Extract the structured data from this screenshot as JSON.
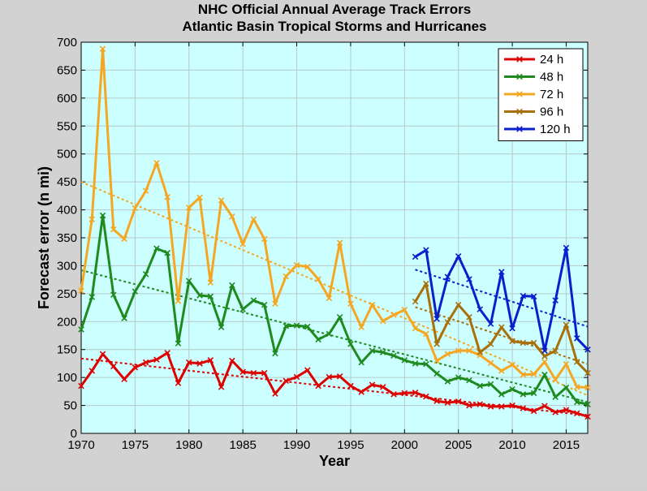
{
  "chart_data": {
    "type": "line",
    "title": "NHC Official Annual Average Track Errors",
    "subtitle": "Atlantic Basin Tropical Storms and Hurricanes",
    "xlabel": "Year",
    "ylabel": "Forecast error (n mi)",
    "xlim": [
      1970,
      2017
    ],
    "ylim": [
      0,
      700
    ],
    "xticks": [
      1970,
      1975,
      1980,
      1985,
      1990,
      1995,
      2000,
      2005,
      2010,
      2015
    ],
    "yticks": [
      0,
      50,
      100,
      150,
      200,
      250,
      300,
      350,
      400,
      450,
      500,
      550,
      600,
      650,
      700
    ],
    "grid": true,
    "legend_position": "top-right",
    "background_color": "#ccffff",
    "series": [
      {
        "name": "24 h",
        "color": "#dd0000",
        "x": [
          1970,
          1971,
          1972,
          1973,
          1974,
          1975,
          1976,
          1977,
          1978,
          1979,
          1980,
          1981,
          1982,
          1983,
          1984,
          1985,
          1986,
          1987,
          1988,
          1989,
          1990,
          1991,
          1992,
          1993,
          1994,
          1995,
          1996,
          1997,
          1998,
          1999,
          2000,
          2001,
          2002,
          2003,
          2004,
          2005,
          2006,
          2007,
          2008,
          2009,
          2010,
          2011,
          2012,
          2013,
          2014,
          2015,
          2016,
          2017
        ],
        "values": [
          85,
          112,
          142,
          120,
          97,
          118,
          127,
          132,
          144,
          90,
          127,
          125,
          131,
          83,
          130,
          110,
          108,
          108,
          71,
          94,
          101,
          113,
          85,
          101,
          102,
          85,
          74,
          87,
          83,
          70,
          72,
          73,
          66,
          58,
          55,
          57,
          50,
          52,
          48,
          48,
          50,
          45,
          40,
          49,
          38,
          42,
          36,
          30
        ],
        "trend": [
          [
            1970,
            134
          ],
          [
            2017,
            32
          ]
        ]
      },
      {
        "name": "48 h",
        "color": "#1f8a1f",
        "x": [
          1970,
          1971,
          1972,
          1973,
          1974,
          1975,
          1976,
          1977,
          1978,
          1979,
          1980,
          1981,
          1982,
          1983,
          1984,
          1985,
          1986,
          1987,
          1988,
          1989,
          1990,
          1991,
          1992,
          1993,
          1994,
          1995,
          1996,
          1997,
          1998,
          1999,
          2000,
          2001,
          2002,
          2003,
          2004,
          2005,
          2006,
          2007,
          2008,
          2009,
          2010,
          2011,
          2012,
          2013,
          2014,
          2015,
          2016,
          2017
        ],
        "values": [
          186,
          244,
          390,
          248,
          206,
          254,
          285,
          331,
          323,
          161,
          273,
          247,
          245,
          190,
          265,
          222,
          238,
          230,
          143,
          192,
          193,
          191,
          168,
          178,
          208,
          160,
          127,
          148,
          145,
          139,
          131,
          125,
          124,
          107,
          93,
          100,
          95,
          85,
          88,
          70,
          79,
          70,
          72,
          105,
          65,
          82,
          56,
          52
        ],
        "trend": [
          [
            1970,
            292
          ],
          [
            2017,
            56
          ]
        ]
      },
      {
        "name": "72 h",
        "color": "#f5a623",
        "x": [
          1970,
          1971,
          1972,
          1973,
          1974,
          1975,
          1976,
          1977,
          1978,
          1979,
          1980,
          1981,
          1982,
          1983,
          1984,
          1985,
          1986,
          1987,
          1988,
          1989,
          1990,
          1991,
          1992,
          1993,
          1994,
          1995,
          1996,
          1997,
          1998,
          1999,
          2000,
          2001,
          2002,
          2003,
          2004,
          2005,
          2006,
          2007,
          2008,
          2009,
          2010,
          2011,
          2012,
          2013,
          2014,
          2015,
          2016,
          2017
        ],
        "values": [
          255,
          383,
          688,
          365,
          348,
          403,
          434,
          484,
          423,
          237,
          404,
          422,
          270,
          417,
          388,
          339,
          383,
          348,
          232,
          281,
          301,
          298,
          276,
          242,
          341,
          232,
          190,
          230,
          201,
          212,
          221,
          188,
          178,
          130,
          142,
          148,
          148,
          140,
          126,
          112,
          123,
          105,
          106,
          128,
          96,
          124,
          83,
          82
        ],
        "trend": [
          [
            1970,
            450
          ],
          [
            2017,
            68
          ]
        ]
      },
      {
        "name": "96 h",
        "color": "#a8700a",
        "x": [
          2001,
          2002,
          2003,
          2004,
          2005,
          2006,
          2007,
          2008,
          2009,
          2010,
          2011,
          2012,
          2013,
          2014,
          2015,
          2016,
          2017
        ],
        "values": [
          236,
          268,
          160,
          199,
          230,
          208,
          145,
          160,
          190,
          165,
          162,
          162,
          138,
          148,
          194,
          128,
          108
        ],
        "trend": [
          [
            2001,
            226
          ],
          [
            2017,
            124
          ]
        ]
      },
      {
        "name": "120 h",
        "color": "#0a1fcc",
        "x": [
          2001,
          2002,
          2003,
          2004,
          2005,
          2006,
          2007,
          2008,
          2009,
          2010,
          2011,
          2012,
          2013,
          2014,
          2015,
          2016,
          2017
        ],
        "values": [
          316,
          328,
          205,
          280,
          317,
          276,
          222,
          196,
          289,
          188,
          246,
          245,
          148,
          238,
          332,
          170,
          150
        ],
        "trend": [
          [
            2001,
            293
          ],
          [
            2017,
            191
          ]
        ]
      }
    ]
  }
}
